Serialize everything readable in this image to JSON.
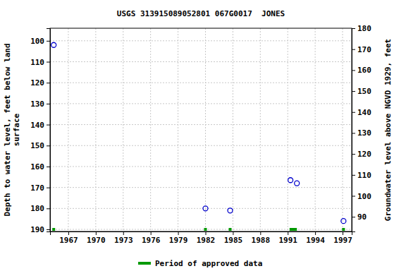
{
  "chart_data": {
    "type": "scatter",
    "title": "USGS 313915089052801 067G0017  JONES",
    "ylabel": [
      "Depth to water level, feet below land",
      "surface"
    ],
    "y2label": "Groundwater level above NGVD 1929, feet",
    "xlim": [
      1965.0,
      1998.0
    ],
    "xticks": [
      1967,
      1970,
      1973,
      1976,
      1979,
      1982,
      1985,
      1988,
      1991,
      1994,
      1997
    ],
    "ylim": [
      191,
      94
    ],
    "yticks": [
      100,
      110,
      120,
      130,
      140,
      150,
      160,
      170,
      180,
      190
    ],
    "y2lim": [
      83,
      180
    ],
    "y2ticks": [
      90,
      100,
      110,
      120,
      130,
      140,
      150,
      160,
      170,
      180
    ],
    "grid": true,
    "legend": "bottom",
    "series": [
      {
        "x": [
          1965.4,
          1982.0,
          1984.7,
          1991.3,
          1992.0,
          1997.1
        ],
        "values": [
          102,
          180,
          181,
          166.5,
          168,
          186
        ],
        "color": "#0000cc",
        "marker": "circle",
        "line_style": "none"
      },
      {
        "name": "Period of approved data",
        "type": "period",
        "color": "#009900",
        "start": [
          1965.4,
          1982.0,
          1984.7,
          1991.2,
          1997.1
        ],
        "end": [
          1965.4,
          1982.0,
          1984.7,
          1992.0,
          1997.1
        ]
      }
    ]
  }
}
